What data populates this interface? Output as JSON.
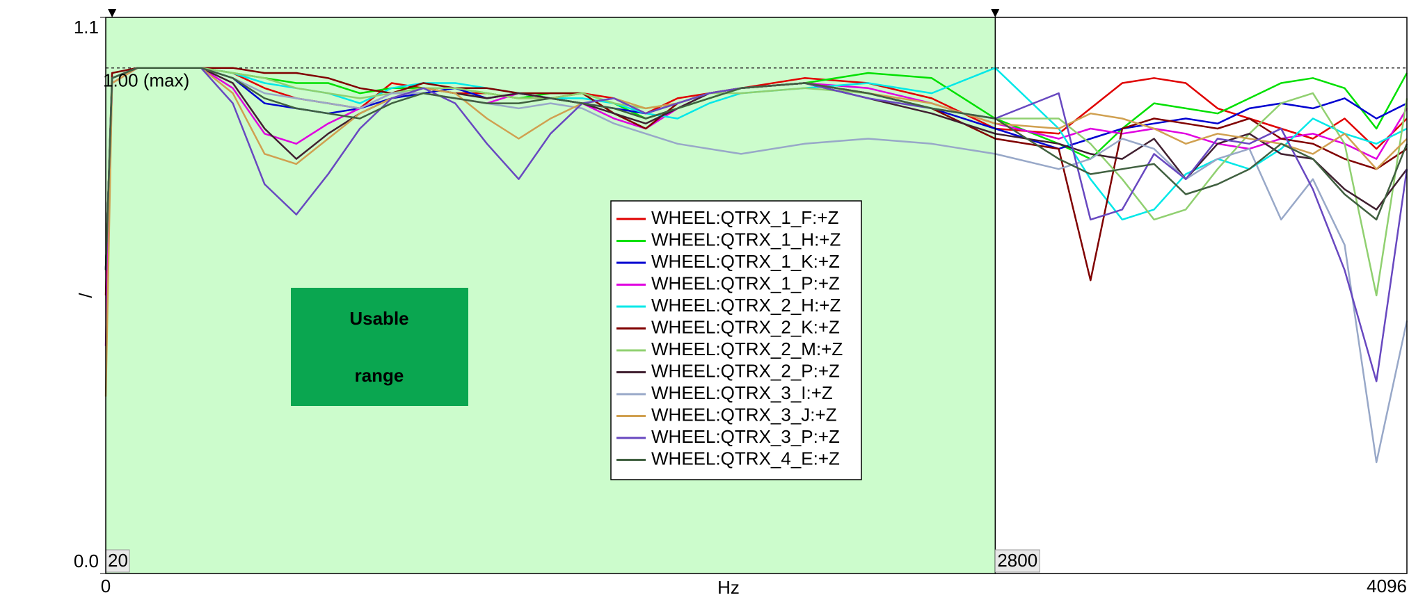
{
  "chart_data": {
    "type": "line",
    "x_label": "Hz",
    "y_label": "/",
    "xlim": [
      0,
      4096
    ],
    "ylim": [
      0,
      1.1
    ],
    "xticks": [
      0,
      4096
    ],
    "yticks": [
      {
        "value": 0,
        "label": "0.0"
      },
      1.1
    ],
    "grid": true,
    "reference_line": {
      "value": 1.0,
      "label": "1.00 (max)"
    },
    "cursors": [
      {
        "value": 20,
        "label": "20"
      },
      {
        "value": 2800,
        "label": "2800"
      }
    ],
    "shaded_region": {
      "label": "Usable range",
      "color": "#ccfccc",
      "box_color": "#0aa650"
    },
    "legend": "center",
    "x": [
      0,
      20,
      100,
      300,
      400,
      500,
      600,
      700,
      800,
      900,
      1000,
      1100,
      1200,
      1300,
      1400,
      1500,
      1600,
      1700,
      1800,
      1900,
      2000,
      2200,
      2400,
      2600,
      2800,
      3000,
      3100,
      3200,
      3300,
      3400,
      3500,
      3600,
      3700,
      3800,
      3900,
      4000,
      4096
    ],
    "series": [
      {
        "name": "WHEEL:QTRX_1_F:+Z",
        "color": "#e00000",
        "values": [
          0.55,
          0.98,
          1.0,
          1.0,
          0.99,
          0.96,
          0.94,
          0.93,
          0.92,
          0.97,
          0.96,
          0.95,
          0.95,
          0.94,
          0.94,
          0.95,
          0.94,
          0.91,
          0.94,
          0.95,
          0.96,
          0.98,
          0.97,
          0.94,
          0.88,
          0.87,
          0.92,
          0.97,
          0.98,
          0.97,
          0.92,
          0.9,
          0.88,
          0.86,
          0.9,
          0.84,
          0.9
        ]
      },
      {
        "name": "WHEEL:QTRX_1_H:+Z",
        "color": "#00e000",
        "values": [
          0.6,
          0.98,
          1.0,
          1.0,
          0.99,
          0.98,
          0.97,
          0.97,
          0.95,
          0.96,
          0.96,
          0.96,
          0.95,
          0.94,
          0.95,
          0.95,
          0.93,
          0.9,
          0.92,
          0.94,
          0.96,
          0.97,
          0.99,
          0.98,
          0.9,
          0.85,
          0.82,
          0.88,
          0.93,
          0.92,
          0.91,
          0.94,
          0.97,
          0.98,
          0.96,
          0.88,
          0.99
        ]
      },
      {
        "name": "WHEEL:QTRX_1_K:+Z",
        "color": "#0000d0",
        "values": [
          0.6,
          0.98,
          1.0,
          1.0,
          0.98,
          0.93,
          0.92,
          0.91,
          0.92,
          0.94,
          0.95,
          0.96,
          0.94,
          0.95,
          0.94,
          0.93,
          0.92,
          0.91,
          0.93,
          0.95,
          0.96,
          0.97,
          0.95,
          0.92,
          0.88,
          0.84,
          0.86,
          0.88,
          0.89,
          0.9,
          0.89,
          0.92,
          0.93,
          0.92,
          0.94,
          0.9,
          0.93
        ]
      },
      {
        "name": "WHEEL:QTRX_1_P:+Z",
        "color": "#e000e0",
        "values": [
          0.45,
          0.97,
          1.0,
          1.0,
          0.96,
          0.87,
          0.85,
          0.89,
          0.92,
          0.95,
          0.95,
          0.94,
          0.93,
          0.95,
          0.94,
          0.93,
          0.9,
          0.88,
          0.92,
          0.95,
          0.96,
          0.97,
          0.96,
          0.93,
          0.89,
          0.86,
          0.88,
          0.87,
          0.88,
          0.87,
          0.85,
          0.84,
          0.86,
          0.87,
          0.85,
          0.82,
          0.92
        ]
      },
      {
        "name": "WHEEL:QTRX_2_H:+Z",
        "color": "#00e8e8",
        "values": [
          0.6,
          0.98,
          1.0,
          1.0,
          0.99,
          0.97,
          0.96,
          0.95,
          0.93,
          0.96,
          0.97,
          0.97,
          0.96,
          0.95,
          0.94,
          0.94,
          0.93,
          0.91,
          0.9,
          0.93,
          0.95,
          0.96,
          0.97,
          0.95,
          1.0,
          0.88,
          0.78,
          0.7,
          0.72,
          0.79,
          0.82,
          0.8,
          0.84,
          0.9,
          0.87,
          0.85,
          0.88
        ]
      },
      {
        "name": "WHEEL:QTRX_2_K:+Z",
        "color": "#800000",
        "values": [
          0.6,
          0.99,
          1.0,
          1.0,
          1.0,
          0.99,
          0.99,
          0.98,
          0.96,
          0.95,
          0.97,
          0.96,
          0.96,
          0.95,
          0.95,
          0.95,
          0.91,
          0.88,
          0.93,
          0.95,
          0.96,
          0.97,
          0.95,
          0.92,
          0.86,
          0.84,
          0.58,
          0.88,
          0.9,
          0.89,
          0.88,
          0.9,
          0.86,
          0.85,
          0.82,
          0.8,
          0.84
        ]
      },
      {
        "name": "WHEEL:QTRX_2_M:+Z",
        "color": "#90d070",
        "values": [
          0.6,
          0.98,
          1.0,
          1.0,
          0.99,
          0.98,
          0.96,
          0.95,
          0.94,
          0.95,
          0.96,
          0.96,
          0.95,
          0.94,
          0.94,
          0.95,
          0.93,
          0.92,
          0.93,
          0.95,
          0.95,
          0.96,
          0.95,
          0.92,
          0.9,
          0.9,
          0.85,
          0.78,
          0.7,
          0.72,
          0.8,
          0.87,
          0.93,
          0.95,
          0.85,
          0.55,
          0.94
        ]
      },
      {
        "name": "WHEEL:QTRX_2_P:+Z",
        "color": "#402030",
        "values": [
          0.6,
          0.98,
          1.0,
          1.0,
          0.97,
          0.88,
          0.82,
          0.87,
          0.91,
          0.94,
          0.96,
          0.95,
          0.94,
          0.95,
          0.94,
          0.93,
          0.91,
          0.89,
          0.92,
          0.95,
          0.96,
          0.97,
          0.94,
          0.91,
          0.87,
          0.85,
          0.83,
          0.82,
          0.86,
          0.78,
          0.85,
          0.87,
          0.83,
          0.82,
          0.76,
          0.72,
          0.8
        ]
      },
      {
        "name": "WHEEL:QTRX_3_I:+Z",
        "color": "#98a8c8",
        "values": [
          0.6,
          0.98,
          1.0,
          1.0,
          0.98,
          0.95,
          0.94,
          0.93,
          0.92,
          0.95,
          0.95,
          0.94,
          0.93,
          0.92,
          0.93,
          0.92,
          0.89,
          0.87,
          0.85,
          0.84,
          0.83,
          0.85,
          0.86,
          0.85,
          0.83,
          0.8,
          0.82,
          0.86,
          0.84,
          0.78,
          0.82,
          0.84,
          0.7,
          0.78,
          0.65,
          0.22,
          0.5
        ]
      },
      {
        "name": "WHEEL:QTRX_3_J:+Z",
        "color": "#d0a050",
        "values": [
          0.35,
          0.97,
          1.0,
          1.0,
          0.95,
          0.83,
          0.81,
          0.86,
          0.91,
          0.94,
          0.96,
          0.95,
          0.9,
          0.86,
          0.9,
          0.93,
          0.94,
          0.92,
          0.93,
          0.95,
          0.96,
          0.97,
          0.95,
          0.93,
          0.89,
          0.88,
          0.91,
          0.9,
          0.88,
          0.85,
          0.87,
          0.86,
          0.85,
          0.83,
          0.87,
          0.8,
          0.86
        ]
      },
      {
        "name": "WHEEL:QTRX_3_P:+Z",
        "color": "#6848c0",
        "values": [
          0.6,
          0.98,
          1.0,
          1.0,
          0.93,
          0.77,
          0.71,
          0.79,
          0.88,
          0.94,
          0.96,
          0.93,
          0.85,
          0.78,
          0.87,
          0.93,
          0.94,
          0.91,
          0.93,
          0.95,
          0.96,
          0.97,
          0.94,
          0.92,
          0.9,
          0.95,
          0.7,
          0.72,
          0.83,
          0.78,
          0.86,
          0.85,
          0.88,
          0.76,
          0.6,
          0.38,
          0.8
        ]
      },
      {
        "name": "WHEEL:QTRX_4_E:+Z",
        "color": "#406040",
        "values": [
          0.6,
          0.98,
          1.0,
          1.0,
          0.98,
          0.94,
          0.92,
          0.91,
          0.9,
          0.93,
          0.95,
          0.94,
          0.93,
          0.93,
          0.94,
          0.93,
          0.92,
          0.9,
          0.92,
          0.94,
          0.96,
          0.97,
          0.95,
          0.92,
          0.9,
          0.82,
          0.79,
          0.8,
          0.81,
          0.75,
          0.77,
          0.8,
          0.85,
          0.82,
          0.75,
          0.7,
          0.85
        ]
      }
    ]
  }
}
